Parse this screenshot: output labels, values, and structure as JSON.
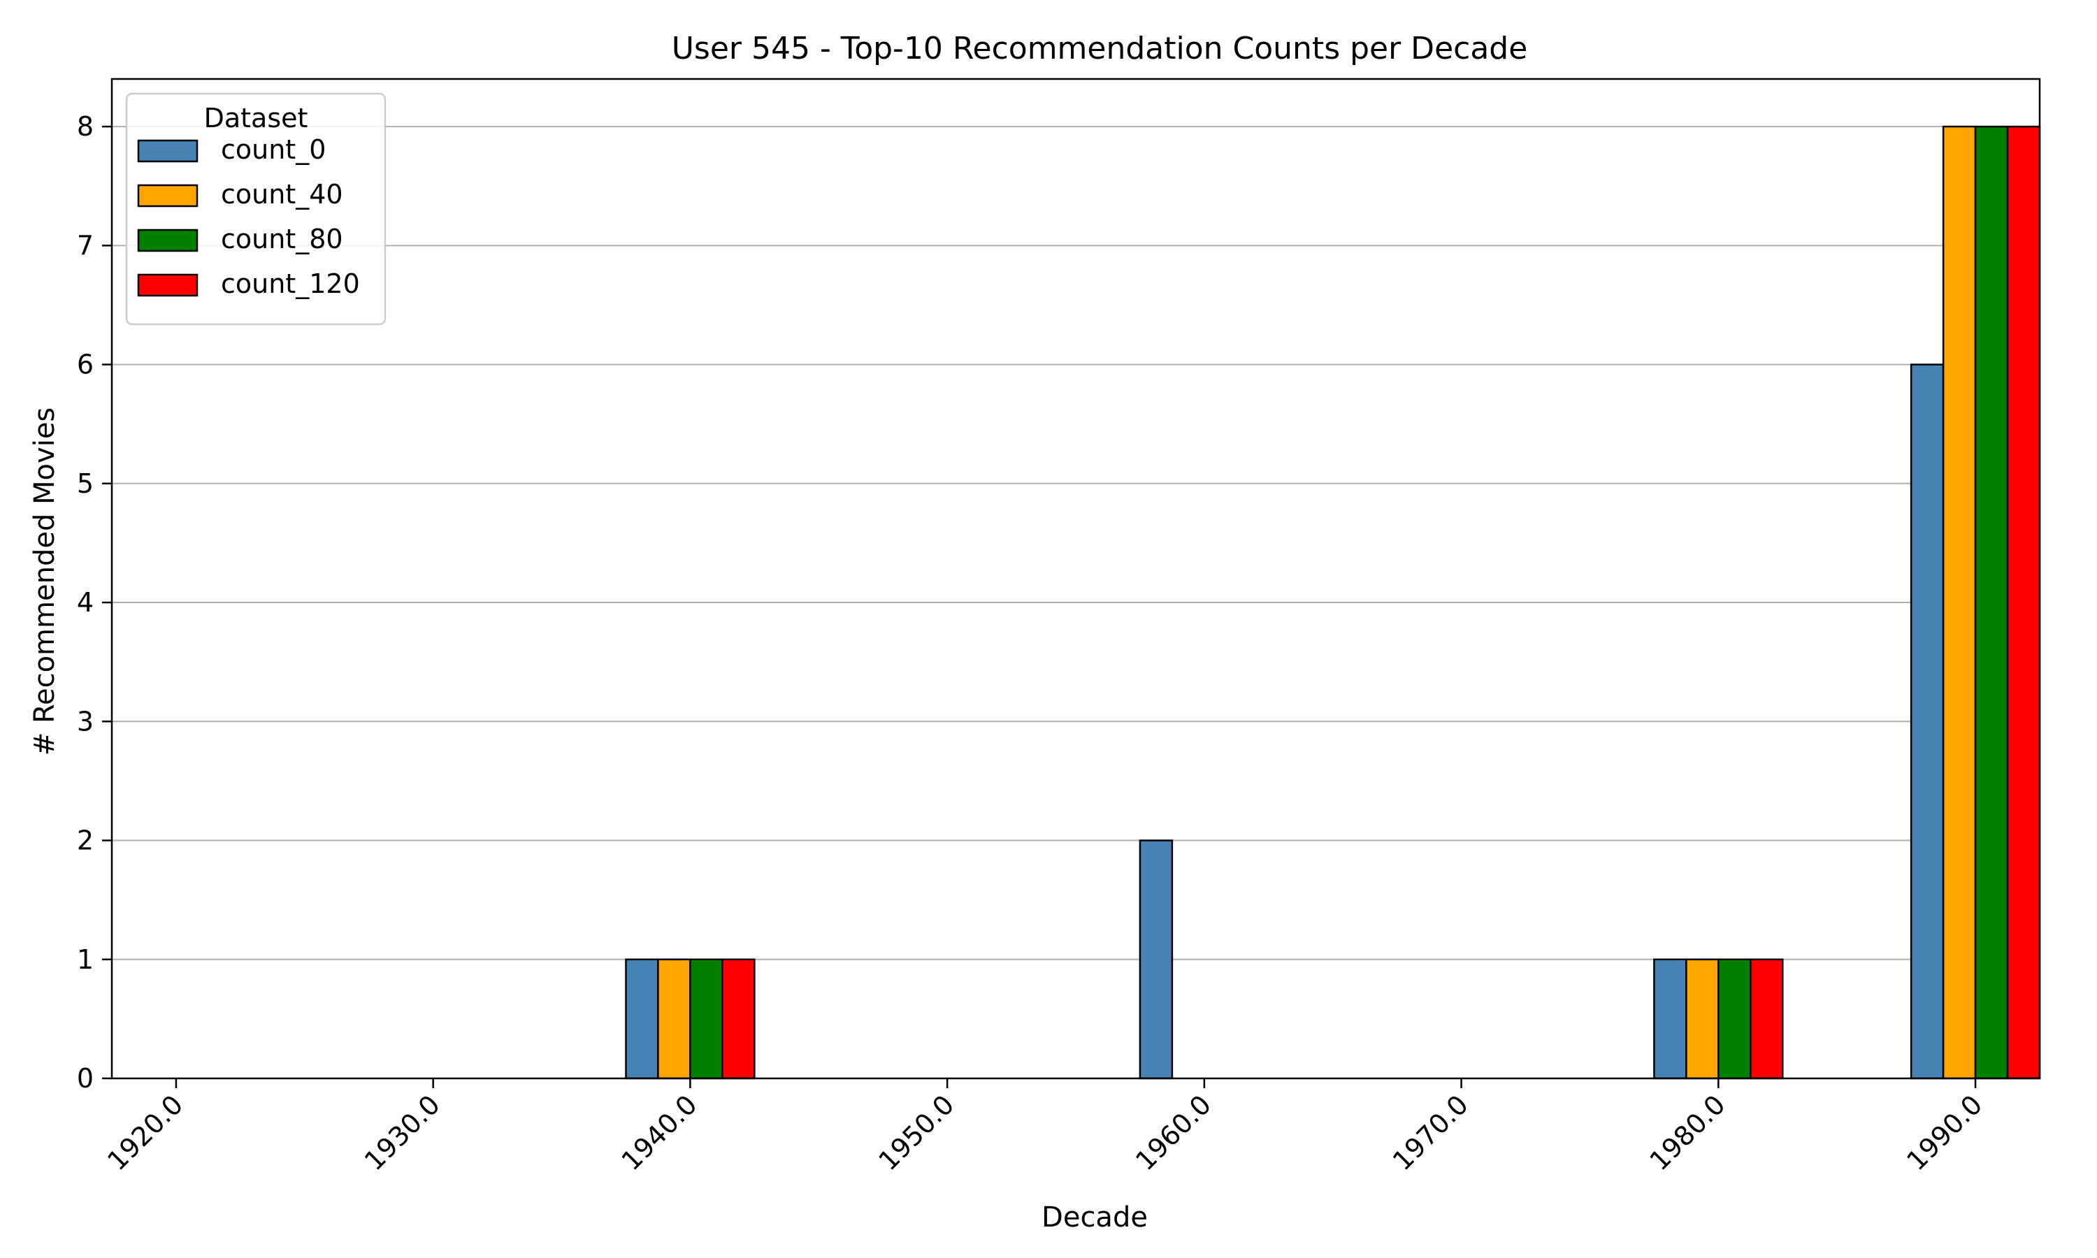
{
  "chart_data": {
    "type": "bar",
    "title": "User 545 - Top-10 Recommendation Counts per Decade",
    "xlabel": "Decade",
    "ylabel": "# Recommended Movies",
    "categories": [
      "1920.0",
      "1930.0",
      "1940.0",
      "1950.0",
      "1960.0",
      "1970.0",
      "1980.0",
      "1990.0"
    ],
    "series": [
      {
        "name": "count_0",
        "color": "#4682b4",
        "values": [
          0,
          0,
          1,
          0,
          2,
          0,
          1,
          6
        ]
      },
      {
        "name": "count_40",
        "color": "#ffa500",
        "values": [
          0,
          0,
          1,
          0,
          0,
          0,
          1,
          8
        ]
      },
      {
        "name": "count_80",
        "color": "#008000",
        "values": [
          0,
          0,
          1,
          0,
          0,
          0,
          1,
          8
        ]
      },
      {
        "name": "count_120",
        "color": "#ff0000",
        "values": [
          0,
          0,
          1,
          0,
          0,
          0,
          1,
          8
        ]
      }
    ],
    "ylim": [
      0,
      8.4
    ],
    "yticks": [
      "0",
      "1",
      "2",
      "3",
      "4",
      "5",
      "6",
      "7",
      "8"
    ],
    "grid": "y",
    "legend": {
      "title": "Dataset",
      "placement": "top-left"
    }
  }
}
